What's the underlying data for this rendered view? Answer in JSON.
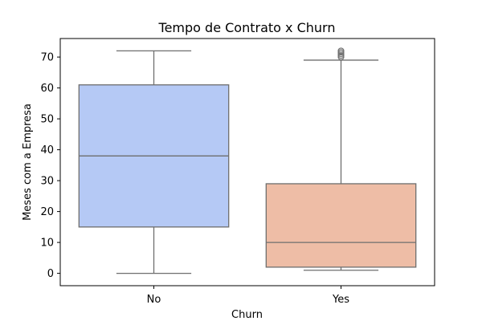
{
  "chart_data": {
    "type": "box",
    "title": "Tempo de Contrato x Churn",
    "xlabel": "Churn",
    "ylabel": "Meses com a Empresa",
    "ylim": [
      -4,
      76
    ],
    "yticks": [
      0,
      10,
      20,
      30,
      40,
      50,
      60,
      70
    ],
    "categories": [
      "No",
      "Yes"
    ],
    "boxes": [
      {
        "category": "No",
        "whisker_low": 0,
        "q1": 15,
        "median": 38,
        "q3": 61,
        "whisker_high": 72,
        "outliers": [],
        "color": "#b5c9f5"
      },
      {
        "category": "Yes",
        "whisker_low": 1,
        "q1": 2,
        "median": 10,
        "q3": 29,
        "whisker_high": 69,
        "outliers": [
          70,
          70.5,
          71,
          71.5,
          72
        ],
        "color": "#eebda6"
      }
    ],
    "line_color": "#6e6e6e",
    "grid": false,
    "legend": "none"
  }
}
